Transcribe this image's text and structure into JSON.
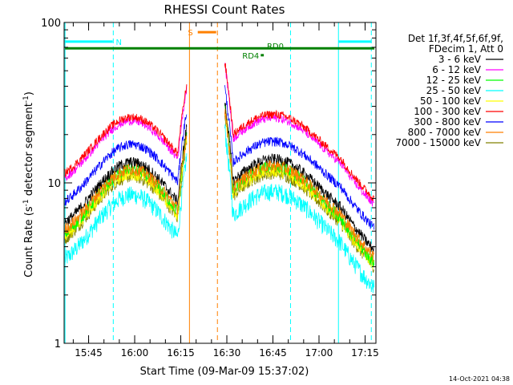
{
  "chart_data": {
    "type": "line",
    "title": "RHESSI Count Rates",
    "xlabel": "Start Time (09-Mar-09 15:37:02)",
    "ylabel_main": "Count Rate (s",
    "ylabel_sup1": "-1",
    "ylabel_mid": " detector segment",
    "ylabel_sup2": "-1",
    "ylabel_end": ")",
    "y_scale": "log",
    "ylim": [
      1,
      100
    ],
    "xlim_minutes": [
      0,
      101.5
    ],
    "x_ticks": [
      {
        "label": "15:45",
        "minute": 7.97
      },
      {
        "label": "16:00",
        "minute": 22.97
      },
      {
        "label": "16:15",
        "minute": 37.97
      },
      {
        "label": "16:30",
        "minute": 52.97
      },
      {
        "label": "16:45",
        "minute": 67.97
      },
      {
        "label": "17:00",
        "minute": 82.97
      },
      {
        "label": "17:15",
        "minute": 97.97
      }
    ],
    "y_ticks": [
      {
        "label": "1",
        "value": 1
      },
      {
        "label": "10",
        "value": 10
      },
      {
        "label": "100",
        "value": 100
      }
    ],
    "legend": {
      "placement": "right",
      "header": [
        "Det 1f,3f,4f,5f,6f,9f,",
        "FDecim 1, Att 0"
      ],
      "entries": [
        {
          "label": "3 - 6 keV",
          "color": "#000000"
        },
        {
          "label": "6 - 12 keV",
          "color": "#ff00ff"
        },
        {
          "label": "12 - 25 keV",
          "color": "#00ff00"
        },
        {
          "label": "25 - 50 keV",
          "color": "#00ffff"
        },
        {
          "label": "50 - 100 keV",
          "color": "#ffff00"
        },
        {
          "label": "100 - 300 keV",
          "color": "#ff0000"
        },
        {
          "label": "300 - 800 keV",
          "color": "#0000ff"
        },
        {
          "label": "800 - 7000 keV",
          "color": "#ff8000"
        },
        {
          "label": "7000 - 15000 keV",
          "color": "#808000"
        }
      ]
    },
    "series": [
      {
        "color": "#00ffff",
        "level": 4.5,
        "amp": 1.55,
        "noise": 0.13
      },
      {
        "color": "#808000",
        "level": 6.0,
        "amp": 1.5,
        "noise": 0.09
      },
      {
        "color": "#ffff00",
        "level": 6.2,
        "amp": 1.5,
        "noise": 0.09
      },
      {
        "color": "#00ff00",
        "level": 6.5,
        "amp": 1.55,
        "noise": 0.09
      },
      {
        "color": "#000000",
        "level": 7.5,
        "amp": 1.45,
        "noise": 0.08
      },
      {
        "color": "#ff8000",
        "level": 6.8,
        "amp": 1.45,
        "noise": 0.09
      },
      {
        "color": "#0000ff",
        "level": 10.0,
        "amp": 1.38,
        "noise": 0.07
      },
      {
        "color": "#ff00ff",
        "level": 14.0,
        "amp": 1.38,
        "noise": 0.06
      },
      {
        "color": "#ff0000",
        "level": 15.0,
        "amp": 1.35,
        "noise": 0.06
      }
    ],
    "gap_minutes": [
      40.5,
      51.8
    ],
    "night_lines_minutes": [
      0.3,
      16.0,
      73.7,
      89.3,
      100.0
    ],
    "flag_lines_minutes": [
      40.8,
      49.9
    ],
    "annotations": [
      {
        "label": "N",
        "color": "#00ffff",
        "segments": [
          [
            0.3,
            15.8
          ],
          [
            89.3,
            100.0
          ]
        ],
        "y": 76
      },
      {
        "label": "S",
        "color": "#ff8000",
        "segments": [
          [
            43.5,
            49.5
          ]
        ],
        "y": 87
      },
      {
        "label": "RD0",
        "color": "#008000",
        "segments": [
          [
            0.3,
            101.0
          ]
        ],
        "y": 69
      },
      {
        "label": "RD4",
        "color": "#008000",
        "segments": [
          [
            64.0,
            65.0
          ]
        ],
        "y": 62.5
      }
    ],
    "timestamp": "14-Oct-2021 04:38"
  }
}
